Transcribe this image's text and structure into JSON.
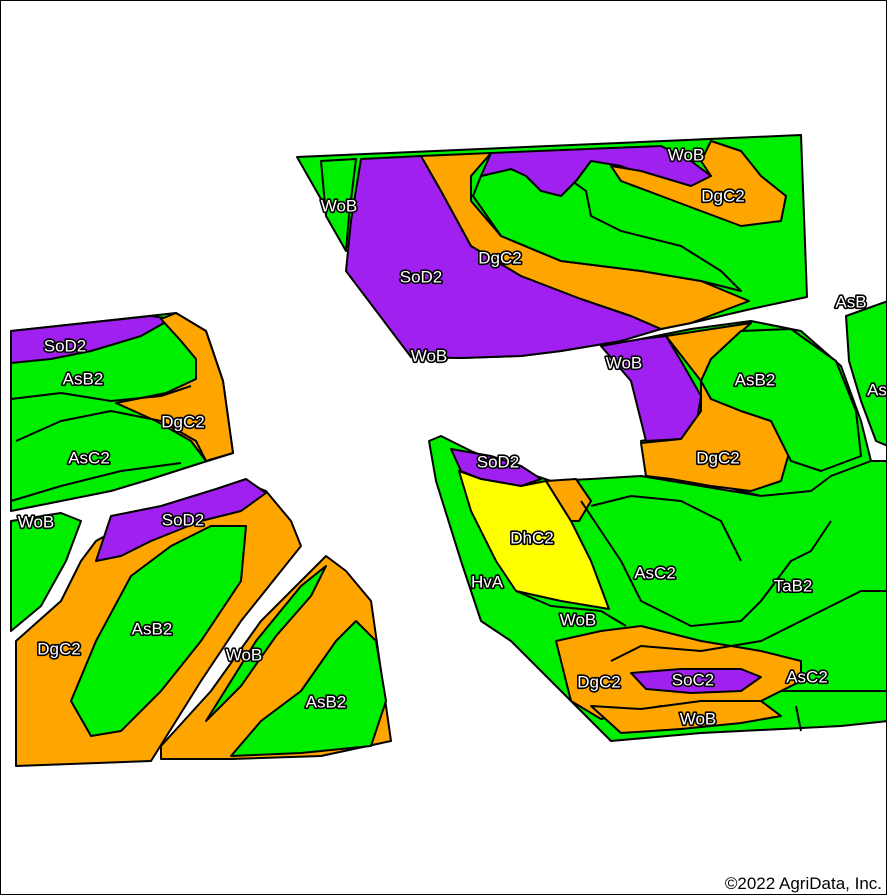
{
  "colors": {
    "green": "#00ee00",
    "purple": "#a020f0",
    "orange": "#ffa500",
    "yellow": "#ffff00",
    "background": "#ffffff"
  },
  "soil_units": [
    {
      "symbol": "SoD2",
      "color": "purple"
    },
    {
      "symbol": "SoC2",
      "color": "purple"
    },
    {
      "symbol": "DgC2",
      "color": "orange"
    },
    {
      "symbol": "DhC2",
      "color": "yellow"
    },
    {
      "symbol": "WoB",
      "color": "green"
    },
    {
      "symbol": "AsB",
      "color": "green"
    },
    {
      "symbol": "AsB2",
      "color": "green"
    },
    {
      "symbol": "AsC2",
      "color": "green"
    },
    {
      "symbol": "TaB2",
      "color": "green"
    },
    {
      "symbol": "HvA",
      "color": "green"
    }
  ],
  "labels": {
    "top_wob_1": "WoB",
    "top_dgc2_1": "DgC2",
    "top_wob_2": "WoB",
    "top_sod2": "SoD2",
    "top_dgc2_2": "DgC2",
    "top_wob_3": "WoB",
    "asb_right": "AsB",
    "as_cut": "As",
    "mid_wob": "WoB",
    "mid_asb2": "AsB2",
    "mid_dgc2": "DgC2",
    "left_sod2": "SoD2",
    "left_asb2": "AsB2",
    "left_dgc2": "DgC2",
    "left_asc2": "AsC2",
    "left_wob": "WoB",
    "left_sod2_2": "SoD2",
    "left_dgc2_2": "DgC2",
    "left_asb2_2": "AsB2",
    "left_wob_2": "WoB",
    "left_asb2_3": "AsB2",
    "br_sod2": "SoD2",
    "br_dhc2": "DhC2",
    "br_asc2": "AsC2",
    "br_hva": "HvA",
    "br_tab2": "TaB2",
    "br_wob": "WoB",
    "br_dgc2": "DgC2",
    "br_soc2": "SoC2",
    "br_asc2_2": "AsC2",
    "br_wob_2": "WoB"
  },
  "copyright": "©2022 AgriData, Inc."
}
